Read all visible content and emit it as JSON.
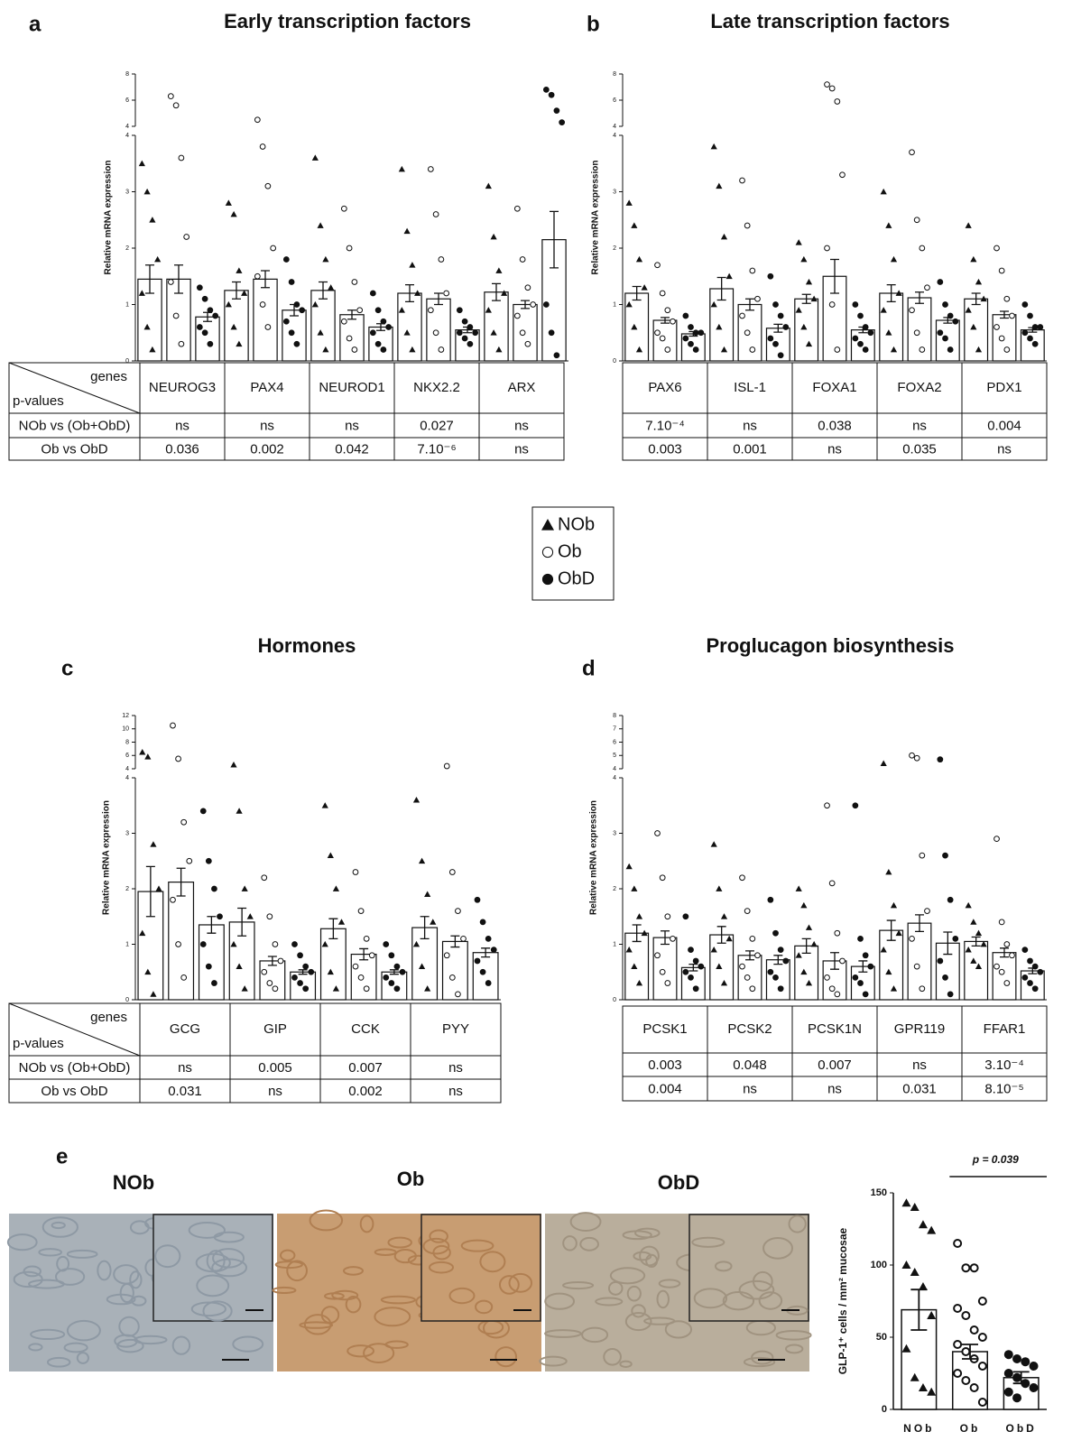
{
  "legend": [
    {
      "name": "NOb",
      "marker": "triangle"
    },
    {
      "name": "Ob",
      "marker": "open-circle"
    },
    {
      "name": "ObD",
      "marker": "circle"
    }
  ],
  "micrographs": [
    "NOb",
    "Ob",
    "ObD"
  ],
  "chart_data": [
    {
      "type": "bar",
      "panel": "a",
      "title": "Early transcription factors",
      "ylabel": "Relative mRNA expression",
      "categories": [
        "NEUROG3",
        "PAX4",
        "NEUROD1",
        "NKX2.2",
        "ARX"
      ],
      "ylim": [
        0,
        8
      ],
      "ybreak": 4,
      "yticks": [
        0,
        1,
        2,
        3,
        4,
        6,
        8
      ],
      "series": [
        {
          "marker": "triangle",
          "values": [
            1.45,
            1.25,
            1.25,
            1.2,
            1.22
          ],
          "errors": [
            0.25,
            0.15,
            0.15,
            0.15,
            0.15
          ],
          "points": [
            [
              3.5,
              3.0,
              2.5,
              1.8,
              1.2,
              0.6,
              0.2
            ],
            [
              2.8,
              2.6,
              1.6,
              1.2,
              1.0,
              0.6,
              0.3
            ],
            [
              3.6,
              2.4,
              1.8,
              1.3,
              1.0,
              0.5,
              0.2
            ],
            [
              3.4,
              2.3,
              1.7,
              1.2,
              0.9,
              0.5,
              0.2
            ],
            [
              3.1,
              2.2,
              1.6,
              1.2,
              0.9,
              0.5,
              0.2
            ]
          ]
        },
        {
          "marker": "open-circle",
          "values": [
            1.45,
            1.45,
            0.82,
            1.1,
            1.0
          ],
          "errors": [
            0.25,
            0.15,
            0.08,
            0.1,
            0.07
          ],
          "points": [
            [
              6.3,
              5.6,
              3.6,
              2.2,
              1.4,
              0.8,
              0.3
            ],
            [
              4.5,
              3.8,
              3.1,
              2.0,
              1.5,
              1.0,
              0.6
            ],
            [
              2.7,
              2.0,
              1.4,
              0.9,
              0.7,
              0.4,
              0.2
            ],
            [
              3.4,
              2.6,
              1.8,
              1.2,
              0.9,
              0.5,
              0.2
            ],
            [
              2.7,
              1.8,
              1.3,
              1.0,
              0.8,
              0.5,
              0.3
            ]
          ]
        },
        {
          "marker": "circle",
          "values": [
            0.78,
            0.9,
            0.6,
            0.55,
            2.15
          ],
          "errors": [
            0.08,
            0.1,
            0.06,
            0.05,
            0.5
          ],
          "points": [
            [
              1.3,
              1.1,
              0.9,
              0.8,
              0.6,
              0.5,
              0.3
            ],
            [
              1.8,
              1.4,
              1.0,
              0.9,
              0.7,
              0.5,
              0.3
            ],
            [
              1.2,
              0.9,
              0.7,
              0.6,
              0.5,
              0.3,
              0.2
            ],
            [
              0.9,
              0.7,
              0.6,
              0.5,
              0.5,
              0.4,
              0.3
            ],
            [
              6.8,
              6.4,
              5.2,
              4.3,
              1.0,
              0.5,
              0.1
            ]
          ]
        }
      ],
      "table": {
        "header": [
          "genes",
          "p-values"
        ],
        "rows": [
          {
            "label": "NOb vs (Ob+ObD)",
            "values": [
              "ns",
              "ns",
              "ns",
              "0.027",
              "ns"
            ]
          },
          {
            "label": "Ob vs ObD",
            "values": [
              "0.036",
              "0.002",
              "0.042",
              "7.10⁻⁶",
              "ns"
            ]
          }
        ]
      }
    },
    {
      "type": "bar",
      "panel": "b",
      "title": "Late transcription factors",
      "ylabel": "Relative mRNA expression",
      "categories": [
        "PAX6",
        "ISL-1",
        "FOXA1",
        "FOXA2",
        "PDX1"
      ],
      "ylim": [
        0,
        8
      ],
      "ybreak": 4,
      "yticks": [
        0,
        1,
        2,
        3,
        4,
        6,
        8
      ],
      "series": [
        {
          "marker": "triangle",
          "values": [
            1.2,
            1.28,
            1.1,
            1.2,
            1.1
          ],
          "errors": [
            0.12,
            0.2,
            0.08,
            0.15,
            0.1
          ],
          "points": [
            [
              2.8,
              2.4,
              1.8,
              1.3,
              1.0,
              0.6,
              0.2
            ],
            [
              3.8,
              3.1,
              2.2,
              1.5,
              1.0,
              0.6,
              0.2
            ],
            [
              2.1,
              1.8,
              1.4,
              1.1,
              0.9,
              0.6,
              0.3
            ],
            [
              3.0,
              2.4,
              1.8,
              1.2,
              0.9,
              0.5,
              0.2
            ],
            [
              2.4,
              1.8,
              1.4,
              1.1,
              0.9,
              0.6,
              0.2
            ]
          ]
        },
        {
          "marker": "open-circle",
          "values": [
            0.72,
            1.0,
            1.5,
            1.12,
            0.82
          ],
          "errors": [
            0.05,
            0.1,
            0.3,
            0.1,
            0.06
          ],
          "points": [
            [
              1.7,
              1.2,
              0.9,
              0.7,
              0.5,
              0.4,
              0.2
            ],
            [
              3.2,
              2.4,
              1.6,
              1.1,
              0.8,
              0.5,
              0.2
            ],
            [
              7.2,
              6.9,
              5.9,
              3.3,
              2.0,
              1.0,
              0.2
            ],
            [
              3.7,
              2.5,
              2.0,
              1.3,
              0.9,
              0.5,
              0.2
            ],
            [
              2.0,
              1.6,
              1.1,
              0.8,
              0.6,
              0.4,
              0.2
            ]
          ]
        },
        {
          "marker": "circle",
          "values": [
            0.48,
            0.58,
            0.55,
            0.72,
            0.55
          ],
          "errors": [
            0.04,
            0.07,
            0.05,
            0.05,
            0.04
          ],
          "points": [
            [
              0.8,
              0.6,
              0.5,
              0.5,
              0.4,
              0.3,
              0.2
            ],
            [
              1.5,
              1.0,
              0.8,
              0.6,
              0.4,
              0.3,
              0.1
            ],
            [
              1.0,
              0.8,
              0.6,
              0.5,
              0.4,
              0.3,
              0.2
            ],
            [
              1.4,
              1.0,
              0.8,
              0.7,
              0.5,
              0.4,
              0.2
            ],
            [
              1.0,
              0.8,
              0.6,
              0.6,
              0.5,
              0.4,
              0.3
            ]
          ]
        }
      ],
      "table": {
        "rows": [
          {
            "values": [
              "7.10⁻⁴",
              "ns",
              "0.038",
              "ns",
              "0.004"
            ]
          },
          {
            "values": [
              "0.003",
              "0.001",
              "ns",
              "0.035",
              "ns"
            ]
          }
        ]
      }
    },
    {
      "type": "bar",
      "panel": "c",
      "title": "Hormones",
      "ylabel": "Relative mRNA expression",
      "categories": [
        "GCG",
        "GIP",
        "CCK",
        "PYY"
      ],
      "ylim": [
        0,
        12
      ],
      "ybreak": 4,
      "yticks": [
        0,
        1,
        2,
        3,
        4,
        6,
        8,
        10,
        12
      ],
      "series": [
        {
          "marker": "triangle",
          "values": [
            1.95,
            1.4,
            1.28,
            1.3
          ],
          "errors": [
            0.45,
            0.25,
            0.18,
            0.2
          ],
          "points": [
            [
              6.5,
              5.8,
              2.8,
              2.0,
              1.2,
              0.5,
              0.1
            ],
            [
              4.6,
              3.4,
              2.0,
              1.5,
              1.0,
              0.6,
              0.2
            ],
            [
              3.5,
              2.6,
              2.0,
              1.4,
              1.0,
              0.5,
              0.2
            ],
            [
              3.6,
              2.5,
              1.9,
              1.4,
              1.0,
              0.6,
              0.2
            ]
          ]
        },
        {
          "marker": "open-circle",
          "values": [
            2.12,
            0.7,
            0.82,
            1.05
          ],
          "errors": [
            0.25,
            0.08,
            0.1,
            0.1
          ],
          "points": [
            [
              10.5,
              5.5,
              3.2,
              2.5,
              1.8,
              1.0,
              0.4
            ],
            [
              2.2,
              1.5,
              1.0,
              0.7,
              0.5,
              0.3,
              0.2
            ],
            [
              2.3,
              1.6,
              1.1,
              0.8,
              0.6,
              0.4,
              0.2
            ],
            [
              4.4,
              2.3,
              1.6,
              1.1,
              0.8,
              0.4,
              0.1
            ]
          ]
        },
        {
          "marker": "circle",
          "values": [
            1.35,
            0.5,
            0.5,
            0.85
          ],
          "errors": [
            0.15,
            0.04,
            0.04,
            0.08
          ],
          "points": [
            [
              3.4,
              2.5,
              2.0,
              1.5,
              1.0,
              0.6,
              0.3
            ],
            [
              1.0,
              0.8,
              0.6,
              0.5,
              0.4,
              0.3,
              0.2
            ],
            [
              1.0,
              0.8,
              0.6,
              0.5,
              0.4,
              0.3,
              0.2
            ],
            [
              1.8,
              1.4,
              1.1,
              0.9,
              0.7,
              0.5,
              0.3
            ]
          ]
        }
      ],
      "table": {
        "header": [
          "genes",
          "p-values"
        ],
        "rows": [
          {
            "label": "NOb vs (Ob+ObD)",
            "values": [
              "ns",
              "0.005",
              "0.007",
              "ns"
            ]
          },
          {
            "label": "Ob vs ObD",
            "values": [
              "0.031",
              "ns",
              "0.002",
              "ns"
            ]
          }
        ]
      }
    },
    {
      "type": "bar",
      "panel": "d",
      "title": "Proglucagon biosynthesis",
      "ylabel": "Relative mRNA expression",
      "categories": [
        "PCSK1",
        "PCSK2",
        "PCSK1N",
        "GPR119",
        "FFAR1"
      ],
      "ylim": [
        0,
        8
      ],
      "ybreak": 4,
      "yticks": [
        0,
        1,
        2,
        3,
        4,
        5,
        6,
        7,
        8
      ],
      "series": [
        {
          "marker": "triangle",
          "values": [
            1.2,
            1.17,
            0.97,
            1.25,
            1.05
          ],
          "errors": [
            0.15,
            0.15,
            0.13,
            0.18,
            0.08
          ],
          "points": [
            [
              2.4,
              2.0,
              1.5,
              1.2,
              0.9,
              0.6,
              0.3
            ],
            [
              2.8,
              2.0,
              1.5,
              1.1,
              0.9,
              0.6,
              0.3
            ],
            [
              2.0,
              1.7,
              1.3,
              1.0,
              0.8,
              0.5,
              0.3
            ],
            [
              4.4,
              2.3,
              1.7,
              1.2,
              0.9,
              0.5,
              0.2
            ],
            [
              1.7,
              1.4,
              1.2,
              1.0,
              0.9,
              0.7,
              0.6
            ]
          ]
        },
        {
          "marker": "open-circle",
          "values": [
            1.12,
            0.8,
            0.7,
            1.38,
            0.85
          ],
          "errors": [
            0.12,
            0.08,
            0.15,
            0.15,
            0.08
          ],
          "points": [
            [
              3.0,
              2.2,
              1.5,
              1.1,
              0.8,
              0.5,
              0.3
            ],
            [
              2.2,
              1.6,
              1.1,
              0.8,
              0.6,
              0.4,
              0.2
            ],
            [
              3.5,
              2.1,
              1.2,
              0.7,
              0.4,
              0.2,
              0.1
            ],
            [
              5.0,
              4.8,
              2.6,
              1.6,
              1.1,
              0.6,
              0.2
            ],
            [
              2.9,
              1.4,
              1.0,
              0.8,
              0.6,
              0.5,
              0.3
            ]
          ]
        },
        {
          "marker": "circle",
          "values": [
            0.58,
            0.72,
            0.6,
            1.02,
            0.52
          ],
          "errors": [
            0.06,
            0.08,
            0.1,
            0.2,
            0.05
          ],
          "points": [
            [
              1.5,
              0.9,
              0.7,
              0.6,
              0.5,
              0.4,
              0.2
            ],
            [
              1.8,
              1.2,
              0.9,
              0.7,
              0.5,
              0.4,
              0.2
            ],
            [
              3.5,
              1.1,
              0.8,
              0.6,
              0.4,
              0.3,
              0.1
            ],
            [
              4.7,
              2.6,
              1.8,
              1.1,
              0.7,
              0.4,
              0.1
            ],
            [
              0.9,
              0.7,
              0.6,
              0.5,
              0.4,
              0.3,
              0.2
            ]
          ]
        }
      ],
      "table": {
        "rows": [
          {
            "values": [
              "0.003",
              "0.048",
              "0.007",
              "ns",
              "3.10⁻⁴"
            ]
          },
          {
            "values": [
              "0.004",
              "ns",
              "ns",
              "0.031",
              "8.10⁻⁵"
            ]
          }
        ]
      }
    },
    {
      "type": "bar",
      "panel": "e",
      "ylabel": "GLP-1⁺ cells / mm² mucosae",
      "categories": [
        "NOb",
        "Ob",
        "ObD"
      ],
      "markers": [
        "triangle",
        "open-circle",
        "circle"
      ],
      "values": [
        69,
        40,
        22
      ],
      "errors": [
        14,
        5,
        4
      ],
      "points": [
        [
          143,
          140,
          128,
          124,
          100,
          95,
          85,
          65,
          42,
          22,
          15,
          12
        ],
        [
          115,
          98,
          98,
          75,
          70,
          65,
          55,
          50,
          45,
          40,
          35,
          30,
          25,
          20,
          15,
          5
        ],
        [
          38,
          35,
          33,
          30,
          25,
          22,
          18,
          15,
          12,
          8
        ]
      ],
      "ylim": [
        0,
        150
      ],
      "yticks": [
        0,
        50,
        100,
        150
      ],
      "annotation": "p = 0.039"
    }
  ]
}
